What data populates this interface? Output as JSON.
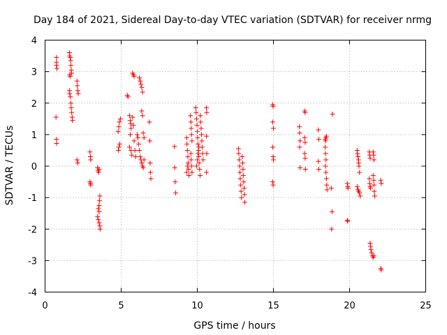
{
  "chart_data": {
    "type": "scatter",
    "title": "Day 184 of 2021, Sidereal Day-to-day VTEC variation (SDTVAR) for receiver nrmg",
    "xlabel": "GPS time / hours",
    "ylabel": "SDTVAR / TECUs",
    "xlim": [
      0,
      25
    ],
    "ylim": [
      -4,
      4
    ],
    "xticks": [
      0,
      5,
      10,
      15,
      20,
      25
    ],
    "yticks": [
      -4,
      -3,
      -2,
      -1,
      0,
      1,
      2,
      3,
      4
    ],
    "grid": true,
    "marker": "+",
    "color": "#ff0000",
    "series": [
      {
        "name": "SDTVAR",
        "points": [
          [
            0.75,
            3.45
          ],
          [
            0.75,
            3.3
          ],
          [
            0.75,
            3.2
          ],
          [
            0.78,
            3.1
          ],
          [
            0.72,
            1.55
          ],
          [
            0.75,
            0.85
          ],
          [
            0.76,
            0.72
          ],
          [
            1.6,
            3.6
          ],
          [
            1.62,
            3.5
          ],
          [
            1.65,
            3.45
          ],
          [
            1.68,
            3.35
          ],
          [
            1.7,
            3.2
          ],
          [
            1.72,
            3.05
          ],
          [
            1.74,
            2.95
          ],
          [
            1.62,
            2.9
          ],
          [
            1.65,
            2.85
          ],
          [
            1.6,
            2.4
          ],
          [
            1.62,
            2.3
          ],
          [
            1.66,
            2.2
          ],
          [
            1.7,
            2.0
          ],
          [
            1.72,
            1.85
          ],
          [
            1.75,
            1.7
          ],
          [
            1.78,
            1.55
          ],
          [
            1.8,
            1.45
          ],
          [
            2.1,
            2.7
          ],
          [
            2.12,
            2.55
          ],
          [
            2.15,
            2.4
          ],
          [
            2.18,
            2.3
          ],
          [
            2.1,
            0.2
          ],
          [
            2.15,
            0.1
          ],
          [
            2.95,
            0.45
          ],
          [
            2.98,
            0.3
          ],
          [
            3.0,
            0.2
          ],
          [
            2.95,
            -0.5
          ],
          [
            2.98,
            -0.55
          ],
          [
            3.0,
            -0.6
          ],
          [
            3.45,
            -0.05
          ],
          [
            3.48,
            -0.15
          ],
          [
            3.52,
            -0.2
          ],
          [
            3.55,
            -0.1
          ],
          [
            3.6,
            -0.95
          ],
          [
            3.58,
            -1.1
          ],
          [
            3.55,
            -1.25
          ],
          [
            3.5,
            -1.35
          ],
          [
            3.55,
            -1.45
          ],
          [
            3.45,
            -1.6
          ],
          [
            3.5,
            -1.7
          ],
          [
            3.55,
            -1.8
          ],
          [
            3.6,
            -1.9
          ],
          [
            3.62,
            -2.0
          ],
          [
            4.8,
            1.1
          ],
          [
            4.85,
            1.25
          ],
          [
            4.88,
            1.4
          ],
          [
            4.95,
            1.5
          ],
          [
            4.82,
            0.5
          ],
          [
            4.85,
            0.6
          ],
          [
            4.9,
            0.7
          ],
          [
            5.4,
            2.25
          ],
          [
            5.45,
            2.2
          ],
          [
            5.55,
            1.6
          ],
          [
            5.6,
            1.45
          ],
          [
            5.62,
            1.35
          ],
          [
            5.65,
            1.2
          ],
          [
            5.6,
            1.0
          ],
          [
            5.55,
            0.6
          ],
          [
            5.65,
            0.5
          ],
          [
            5.7,
            0.35
          ],
          [
            5.75,
            2.95
          ],
          [
            5.8,
            2.9
          ],
          [
            5.85,
            2.85
          ],
          [
            5.75,
            1.55
          ],
          [
            5.8,
            1.3
          ],
          [
            5.85,
            0.8
          ],
          [
            5.9,
            0.5
          ],
          [
            5.95,
            0.3
          ],
          [
            6.2,
            2.8
          ],
          [
            6.25,
            2.7
          ],
          [
            6.3,
            2.6
          ],
          [
            6.35,
            2.5
          ],
          [
            6.4,
            2.35
          ],
          [
            6.05,
            1.0
          ],
          [
            6.1,
            0.9
          ],
          [
            6.15,
            0.7
          ],
          [
            6.2,
            0.5
          ],
          [
            6.25,
            0.3
          ],
          [
            6.3,
            0.2
          ],
          [
            6.35,
            0.1
          ],
          [
            6.4,
            0.0
          ],
          [
            6.45,
            -0.05
          ],
          [
            6.5,
            0.2
          ],
          [
            6.35,
            1.75
          ],
          [
            6.4,
            1.6
          ],
          [
            6.45,
            1.05
          ],
          [
            6.5,
            0.9
          ],
          [
            6.85,
            1.4
          ],
          [
            6.88,
            0.8
          ],
          [
            6.9,
            0.1
          ],
          [
            6.92,
            -0.2
          ],
          [
            6.95,
            -0.4
          ],
          [
            8.5,
            0.62
          ],
          [
            8.52,
            -0.05
          ],
          [
            8.55,
            -0.5
          ],
          [
            8.58,
            -0.85
          ],
          [
            9.3,
            0.9
          ],
          [
            9.32,
            0.7
          ],
          [
            9.35,
            0.5
          ],
          [
            9.38,
            0.3
          ],
          [
            9.4,
            0.1
          ],
          [
            9.42,
            -0.1
          ],
          [
            9.45,
            -0.3
          ],
          [
            9.3,
            -0.2
          ],
          [
            9.35,
            0.0
          ],
          [
            9.55,
            1.6
          ],
          [
            9.58,
            1.4
          ],
          [
            9.6,
            1.2
          ],
          [
            9.62,
            1.0
          ],
          [
            9.65,
            0.8
          ],
          [
            9.58,
            0.4
          ],
          [
            9.6,
            0.2
          ],
          [
            9.62,
            0.0
          ],
          [
            9.65,
            -0.2
          ],
          [
            9.9,
            1.85
          ],
          [
            9.92,
            1.7
          ],
          [
            9.95,
            1.5
          ],
          [
            9.98,
            1.3
          ],
          [
            10.0,
            1.1
          ],
          [
            10.02,
            0.9
          ],
          [
            10.05,
            0.7
          ],
          [
            10.08,
            0.5
          ],
          [
            10.1,
            0.3
          ],
          [
            10.12,
            0.1
          ],
          [
            10.15,
            -0.1
          ],
          [
            10.18,
            -0.3
          ],
          [
            9.95,
            0.0
          ],
          [
            10.0,
            0.2
          ],
          [
            10.05,
            0.4
          ],
          [
            10.1,
            0.6
          ],
          [
            10.2,
            1.6
          ],
          [
            10.22,
            1.4
          ],
          [
            10.25,
            1.2
          ],
          [
            10.28,
            1.0
          ],
          [
            10.3,
            0.8
          ],
          [
            10.32,
            0.6
          ],
          [
            10.35,
            0.4
          ],
          [
            10.38,
            0.2
          ],
          [
            10.6,
            1.85
          ],
          [
            10.62,
            1.7
          ],
          [
            10.6,
            0.95
          ],
          [
            10.62,
            0.4
          ],
          [
            10.6,
            -0.2
          ],
          [
            12.7,
            0.55
          ],
          [
            12.72,
            0.4
          ],
          [
            12.75,
            0.2
          ],
          [
            12.78,
            0.0
          ],
          [
            12.8,
            -0.2
          ],
          [
            12.82,
            -0.4
          ],
          [
            12.85,
            -0.6
          ],
          [
            12.88,
            -0.8
          ],
          [
            12.9,
            -1.0
          ],
          [
            12.95,
            0.3
          ],
          [
            12.98,
            0.1
          ],
          [
            13.0,
            -0.1
          ],
          [
            13.02,
            -0.3
          ],
          [
            13.05,
            -0.5
          ],
          [
            13.08,
            -0.7
          ],
          [
            13.1,
            -0.9
          ],
          [
            13.12,
            -1.15
          ],
          [
            14.95,
            1.95
          ],
          [
            14.98,
            1.9
          ],
          [
            14.95,
            1.4
          ],
          [
            15.0,
            1.2
          ],
          [
            14.95,
            0.6
          ],
          [
            14.98,
            0.3
          ],
          [
            15.0,
            0.2
          ],
          [
            14.95,
            -0.5
          ],
          [
            14.98,
            -0.6
          ],
          [
            16.7,
            1.25
          ],
          [
            16.72,
            1.05
          ],
          [
            16.75,
            0.8
          ],
          [
            16.72,
            0.6
          ],
          [
            16.75,
            -0.05
          ],
          [
            17.05,
            1.75
          ],
          [
            17.08,
            1.7
          ],
          [
            17.05,
            0.9
          ],
          [
            17.08,
            0.75
          ],
          [
            17.05,
            0.4
          ],
          [
            17.08,
            0.25
          ],
          [
            17.1,
            -0.1
          ],
          [
            17.95,
            1.15
          ],
          [
            17.98,
            0.85
          ],
          [
            17.95,
            0.15
          ],
          [
            17.98,
            -0.1
          ],
          [
            18.4,
            0.85
          ],
          [
            18.42,
            0.8
          ],
          [
            18.45,
            0.9
          ],
          [
            18.48,
            0.95
          ],
          [
            18.4,
            0.6
          ],
          [
            18.42,
            0.4
          ],
          [
            18.45,
            0.2
          ],
          [
            18.42,
            0.0
          ],
          [
            18.45,
            -0.2
          ],
          [
            18.48,
            -0.4
          ],
          [
            18.5,
            -0.6
          ],
          [
            18.52,
            -0.75
          ],
          [
            18.8,
            -0.7
          ],
          [
            18.85,
            -1.45
          ],
          [
            18.82,
            -2.0
          ],
          [
            18.88,
            1.65
          ],
          [
            19.85,
            -0.55
          ],
          [
            19.88,
            -0.65
          ],
          [
            19.9,
            -0.7
          ],
          [
            19.85,
            -1.72
          ],
          [
            19.88,
            -1.75
          ],
          [
            20.5,
            0.5
          ],
          [
            20.52,
            0.4
          ],
          [
            20.55,
            0.3
          ],
          [
            20.58,
            0.2
          ],
          [
            20.6,
            0.1
          ],
          [
            20.62,
            0.0
          ],
          [
            20.65,
            -0.2
          ],
          [
            20.5,
            -0.65
          ],
          [
            20.55,
            -0.75
          ],
          [
            20.6,
            -0.8
          ],
          [
            20.65,
            -0.85
          ],
          [
            20.7,
            -0.95
          ],
          [
            21.3,
            0.45
          ],
          [
            21.32,
            0.35
          ],
          [
            21.35,
            0.25
          ],
          [
            21.3,
            -0.4
          ],
          [
            21.32,
            -0.55
          ],
          [
            21.35,
            -0.65
          ],
          [
            21.38,
            -0.7
          ],
          [
            21.55,
            0.45
          ],
          [
            21.58,
            0.35
          ],
          [
            21.6,
            0.2
          ],
          [
            21.55,
            -0.3
          ],
          [
            21.58,
            -0.45
          ],
          [
            21.6,
            -0.6
          ],
          [
            21.62,
            -0.8
          ],
          [
            21.65,
            -0.95
          ],
          [
            21.35,
            -2.45
          ],
          [
            21.38,
            -2.55
          ],
          [
            21.4,
            -2.65
          ],
          [
            21.45,
            -2.75
          ],
          [
            21.5,
            -2.85
          ],
          [
            21.55,
            -2.9
          ],
          [
            21.6,
            -2.85
          ],
          [
            22.05,
            -0.45
          ],
          [
            22.08,
            -0.55
          ],
          [
            22.05,
            -3.25
          ],
          [
            22.08,
            -3.3
          ]
        ]
      }
    ]
  }
}
